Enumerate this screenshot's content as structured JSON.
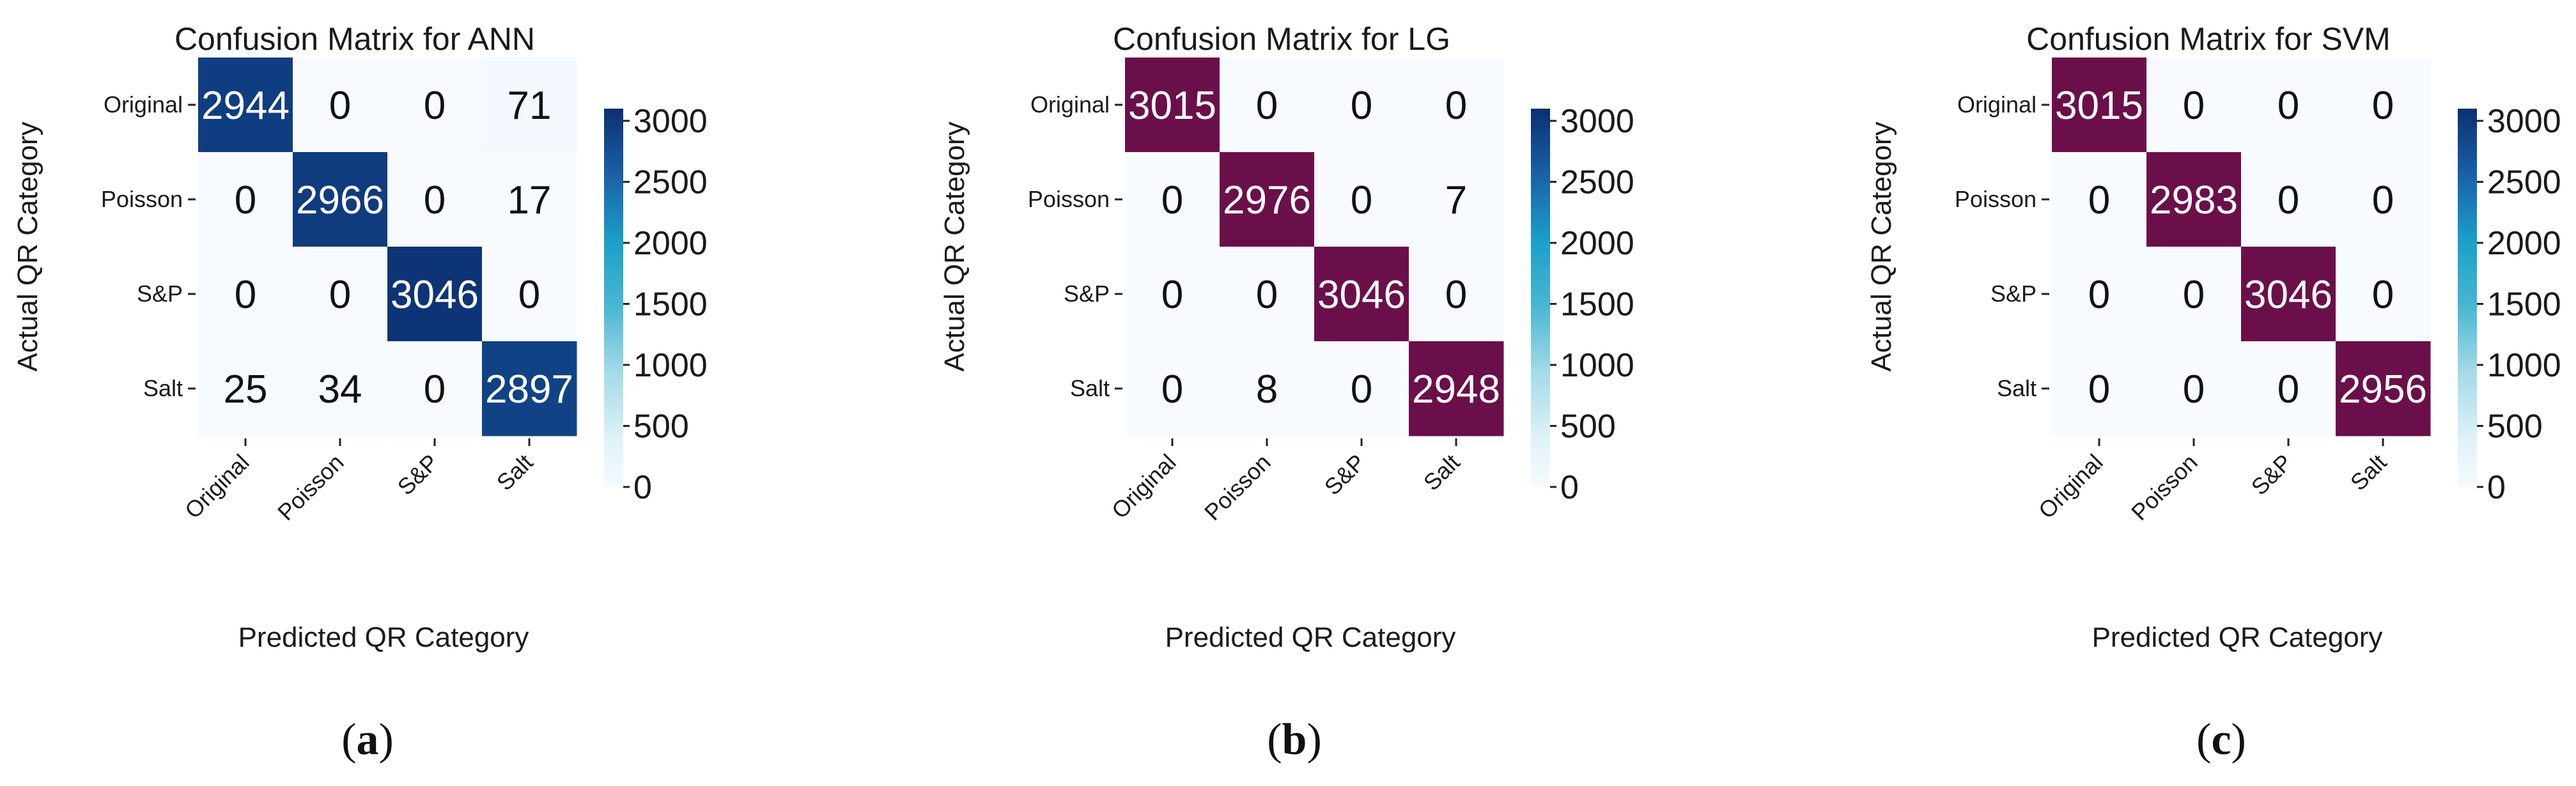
{
  "figure": {
    "panel_labels": [
      {
        "open": "(",
        "letter": "a",
        "close": ")"
      },
      {
        "open": "(",
        "letter": "b",
        "close": ")"
      },
      {
        "open": "(",
        "letter": "c",
        "close": ")"
      }
    ]
  },
  "chart_data": [
    {
      "type": "heatmap",
      "title": "Confusion Matrix for ANN",
      "xlabel": "Predicted QR Category",
      "ylabel": "Actual QR Category",
      "x_categories": [
        "Original",
        "Poisson",
        "S&P",
        "Salt"
      ],
      "y_categories": [
        "Original",
        "Poisson",
        "S&P",
        "Salt"
      ],
      "matrix": [
        [
          2944,
          0,
          0,
          71
        ],
        [
          0,
          2966,
          0,
          17
        ],
        [
          0,
          0,
          3046,
          0
        ],
        [
          25,
          34,
          0,
          2897
        ]
      ],
      "colormap": "blues",
      "diagonal_color": "",
      "colorbar_ticks": [
        "0",
        "500",
        "1000",
        "1500",
        "2000",
        "2500",
        "3000"
      ],
      "colorbar_range": [
        0,
        3100
      ]
    },
    {
      "type": "heatmap",
      "title": "Confusion Matrix for LG",
      "xlabel": "Predicted QR Category",
      "ylabel": "Actual QR Category",
      "x_categories": [
        "Original",
        "Poisson",
        "S&P",
        "Salt"
      ],
      "y_categories": [
        "Original",
        "Poisson",
        "S&P",
        "Salt"
      ],
      "matrix": [
        [
          3015,
          0,
          0,
          0
        ],
        [
          0,
          2976,
          0,
          7
        ],
        [
          0,
          0,
          3046,
          0
        ],
        [
          0,
          8,
          0,
          2948
        ]
      ],
      "colormap": "blues",
      "diagonal_color": "#6b0f4a",
      "colorbar_ticks": [
        "0",
        "500",
        "1000",
        "1500",
        "2000",
        "2500",
        "3000"
      ],
      "colorbar_range": [
        0,
        3100
      ]
    },
    {
      "type": "heatmap",
      "title": "Confusion Matrix for SVM",
      "xlabel": "Predicted QR Category",
      "ylabel": "Actual QR Category",
      "x_categories": [
        "Original",
        "Poisson",
        "S&P",
        "Salt"
      ],
      "y_categories": [
        "Original",
        "Poisson",
        "S&P",
        "Salt"
      ],
      "matrix": [
        [
          3015,
          0,
          0,
          0
        ],
        [
          0,
          2983,
          0,
          0
        ],
        [
          0,
          0,
          3046,
          0
        ],
        [
          0,
          0,
          0,
          2956
        ]
      ],
      "colormap": "blues",
      "diagonal_color": "#6b0f4a",
      "colorbar_ticks": [
        "0",
        "500",
        "1000",
        "1500",
        "2000",
        "2500",
        "3000"
      ],
      "colorbar_range": [
        0,
        3100
      ]
    }
  ]
}
